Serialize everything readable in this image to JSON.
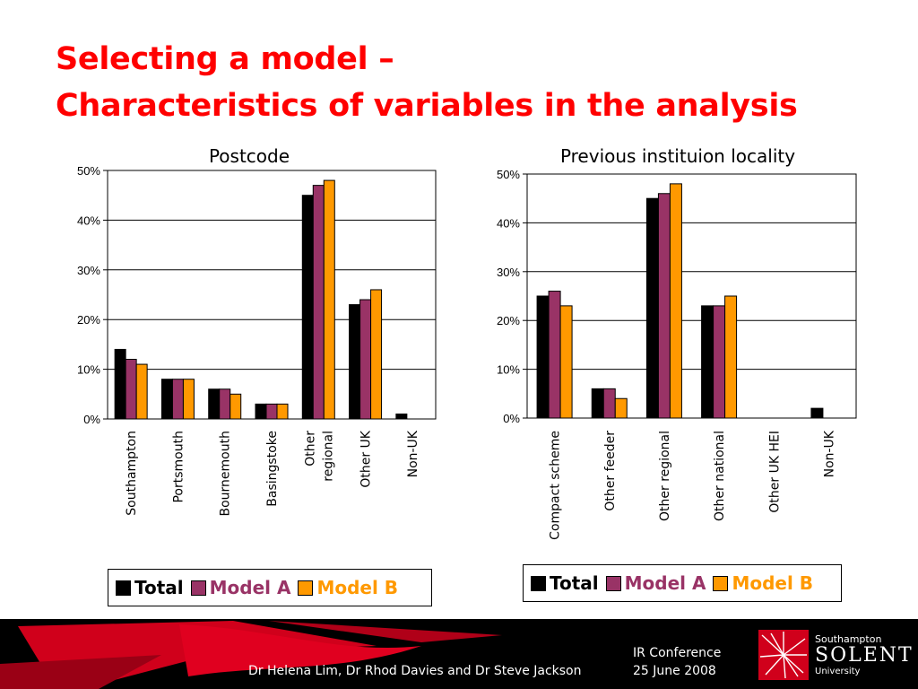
{
  "slide": {
    "title_line1": "Selecting a model –",
    "title_line2": "Characteristics of variables in the analysis"
  },
  "chart_data": [
    {
      "type": "bar",
      "title": "Postcode",
      "categories": [
        "Southampton",
        "Portsmouth",
        "Bournemouth",
        "Basingstoke",
        "Other regional",
        "Other UK",
        "Non-UK"
      ],
      "category_lines": [
        [
          "Southampton"
        ],
        [
          "Portsmouth"
        ],
        [
          "Bournemouth"
        ],
        [
          "Basingstoke"
        ],
        [
          "Other",
          "regional"
        ],
        [
          "Other UK"
        ],
        [
          "Non-UK"
        ]
      ],
      "series": [
        {
          "name": "Total",
          "values": [
            14,
            8,
            6,
            3,
            45,
            23,
            1
          ]
        },
        {
          "name": "Model A",
          "values": [
            12,
            8,
            6,
            3,
            47,
            24,
            0
          ]
        },
        {
          "name": "Model B",
          "values": [
            11,
            8,
            5,
            3,
            48,
            26,
            0
          ]
        }
      ],
      "yticks": [
        "0%",
        "10%",
        "20%",
        "30%",
        "40%",
        "50%"
      ],
      "ylim": [
        0,
        50
      ],
      "grid": true,
      "legend": "bottom"
    },
    {
      "type": "bar",
      "title": "Previous instituion locality",
      "categories": [
        "Compact scheme",
        "Other feeder",
        "Other regional",
        "Other national",
        "Other UK HEI",
        "Non-UK"
      ],
      "category_lines": [
        [
          "Compact scheme"
        ],
        [
          "Other feeder"
        ],
        [
          "Other regional"
        ],
        [
          "Other national"
        ],
        [
          "Other UK HEI"
        ],
        [
          "Non-UK"
        ]
      ],
      "series": [
        {
          "name": "Total",
          "values": [
            25,
            6,
            45,
            23,
            0,
            2
          ]
        },
        {
          "name": "Model A",
          "values": [
            26,
            6,
            46,
            23,
            0,
            0
          ]
        },
        {
          "name": "Model B",
          "values": [
            23,
            4,
            48,
            25,
            0,
            0
          ]
        }
      ],
      "yticks": [
        "0%",
        "10%",
        "20%",
        "30%",
        "40%",
        "50%"
      ],
      "ylim": [
        0,
        50
      ],
      "grid": true,
      "legend": "bottom"
    }
  ],
  "colors": {
    "Total": "#000000",
    "Model A": "#993366",
    "Model B": "#ff9900",
    "title": "#ff0000",
    "Model A label": "#993366",
    "Model B label": "#ff9900"
  },
  "footer": {
    "authors": "Dr Helena Lim, Dr Rhod Davies and Dr Steve Jackson",
    "conference": "IR Conference",
    "date": "25 June 2008",
    "logo_line1": "Southampton",
    "logo_line2": "SOLENT",
    "logo_line3": "University"
  }
}
